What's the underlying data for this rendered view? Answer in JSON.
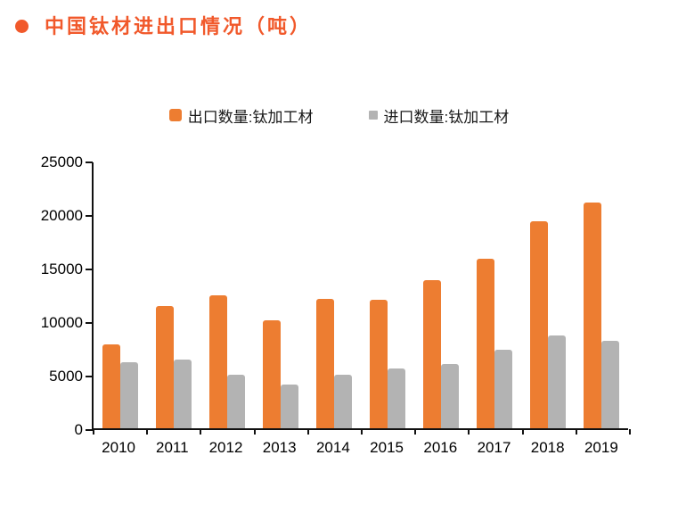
{
  "title": {
    "bullet_icon": "orange-dot",
    "color": "#F1592B"
  },
  "legend": {
    "position": "top-center"
  },
  "colors": {
    "export_orange": "#ED7D31",
    "import_gray": "#B3B3B3",
    "axis_black": "#111111",
    "title_orange": "#F1592B"
  },
  "chart_data": {
    "type": "bar",
    "title": "中国钛材进出口情况（吨）",
    "categories": [
      "2010",
      "2011",
      "2012",
      "2013",
      "2014",
      "2015",
      "2016",
      "2017",
      "2018",
      "2019"
    ],
    "series": [
      {
        "name": "出口数量:钛加工材",
        "key": "export",
        "color": "#ED7D31",
        "values": [
          7800,
          11400,
          12400,
          10100,
          12100,
          12000,
          13800,
          15800,
          19300,
          21100
        ]
      },
      {
        "name": "进口数量:钛加工材",
        "key": "import",
        "color": "#B3B3B3",
        "values": [
          6200,
          6400,
          5000,
          4100,
          5000,
          5600,
          6000,
          7300,
          8700,
          8200
        ]
      }
    ],
    "xlabel": "",
    "ylabel": "",
    "ylim": [
      0,
      25000
    ],
    "y_ticks": [
      0,
      5000,
      10000,
      15000,
      20000,
      25000
    ],
    "grid": false,
    "legend_position": "top"
  }
}
